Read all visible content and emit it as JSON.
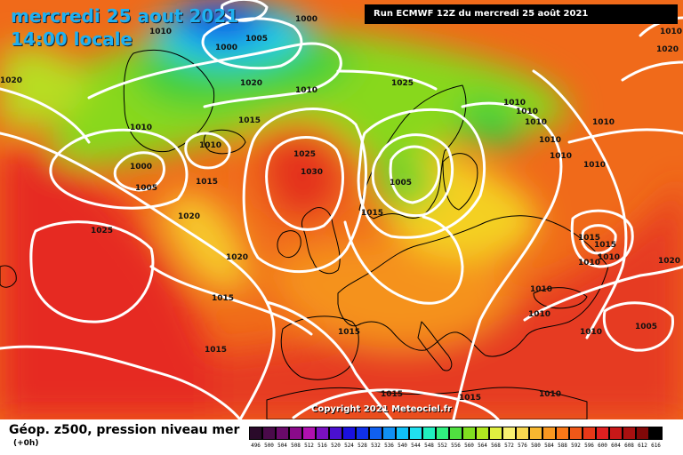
{
  "header": {
    "date": "mercredi 25 aout 2021",
    "time": "14:00 locale",
    "run_info": "Run ECMWF 12Z du mercredi 25 août 2021"
  },
  "map": {
    "isobar_labels": [
      {
        "text": "1010"
      },
      {
        "text": "1000"
      },
      {
        "text": "1000"
      },
      {
        "text": "1005"
      },
      {
        "text": "1020"
      },
      {
        "text": "1010"
      },
      {
        "text": "1015"
      },
      {
        "text": "1010"
      },
      {
        "text": "1000"
      },
      {
        "text": "1005"
      },
      {
        "text": "1015"
      },
      {
        "text": "1020"
      },
      {
        "text": "1025"
      },
      {
        "text": "1025"
      },
      {
        "text": "1030"
      },
      {
        "text": "1020"
      },
      {
        "text": "1015"
      },
      {
        "text": "1015"
      },
      {
        "text": "1025"
      },
      {
        "text": "1005"
      },
      {
        "text": "1015"
      },
      {
        "text": "1010"
      },
      {
        "text": "1010"
      },
      {
        "text": "1010"
      },
      {
        "text": "1010"
      },
      {
        "text": "1010"
      },
      {
        "text": "1010"
      },
      {
        "text": "1010"
      },
      {
        "text": "1020"
      },
      {
        "text": "1010"
      },
      {
        "text": "1015"
      },
      {
        "text": "1015"
      },
      {
        "text": "1010"
      },
      {
        "text": "1010"
      },
      {
        "text": "1010"
      },
      {
        "text": "1010"
      },
      {
        "text": "1010"
      },
      {
        "text": "1005"
      },
      {
        "text": "1015"
      },
      {
        "text": "1015"
      },
      {
        "text": "1015"
      },
      {
        "text": "1010"
      },
      {
        "text": "1020"
      },
      {
        "text": "1020"
      },
      {
        "text": "1010"
      }
    ],
    "copyright": "Copyright 2021 Meteociel.fr"
  },
  "legend": {
    "title": "Géop. z500, pression niveau mer",
    "lead_time": "(+0h)",
    "scale": [
      {
        "label": "496",
        "color": "#2a0a2a"
      },
      {
        "label": "500",
        "color": "#4a0a4a"
      },
      {
        "label": "504",
        "color": "#6a0a6a"
      },
      {
        "label": "508",
        "color": "#8a0a8a"
      },
      {
        "label": "512",
        "color": "#b010b0"
      },
      {
        "label": "516",
        "color": "#7a10c0"
      },
      {
        "label": "520",
        "color": "#4a10d0"
      },
      {
        "label": "524",
        "color": "#1a10e0"
      },
      {
        "label": "528",
        "color": "#1030e8"
      },
      {
        "label": "532",
        "color": "#1060f0"
      },
      {
        "label": "536",
        "color": "#1090f4"
      },
      {
        "label": "540",
        "color": "#10c0f8"
      },
      {
        "label": "544",
        "color": "#20e0f0"
      },
      {
        "label": "548",
        "color": "#20f0c0"
      },
      {
        "label": "552",
        "color": "#30f080"
      },
      {
        "label": "556",
        "color": "#50e040"
      },
      {
        "label": "560",
        "color": "#80e020"
      },
      {
        "label": "564",
        "color": "#b0e820"
      },
      {
        "label": "568",
        "color": "#e0f040"
      },
      {
        "label": "572",
        "color": "#f8f070"
      },
      {
        "label": "576",
        "color": "#f8d850"
      },
      {
        "label": "580",
        "color": "#f8b830"
      },
      {
        "label": "584",
        "color": "#f89820"
      },
      {
        "label": "588",
        "color": "#f87818"
      },
      {
        "label": "592",
        "color": "#f05818"
      },
      {
        "label": "596",
        "color": "#e83818"
      },
      {
        "label": "600",
        "color": "#e02020"
      },
      {
        "label": "604",
        "color": "#c81818"
      },
      {
        "label": "608",
        "color": "#a81010"
      },
      {
        "label": "612",
        "color": "#800808"
      },
      {
        "label": "616",
        "color": "#000000"
      }
    ]
  }
}
